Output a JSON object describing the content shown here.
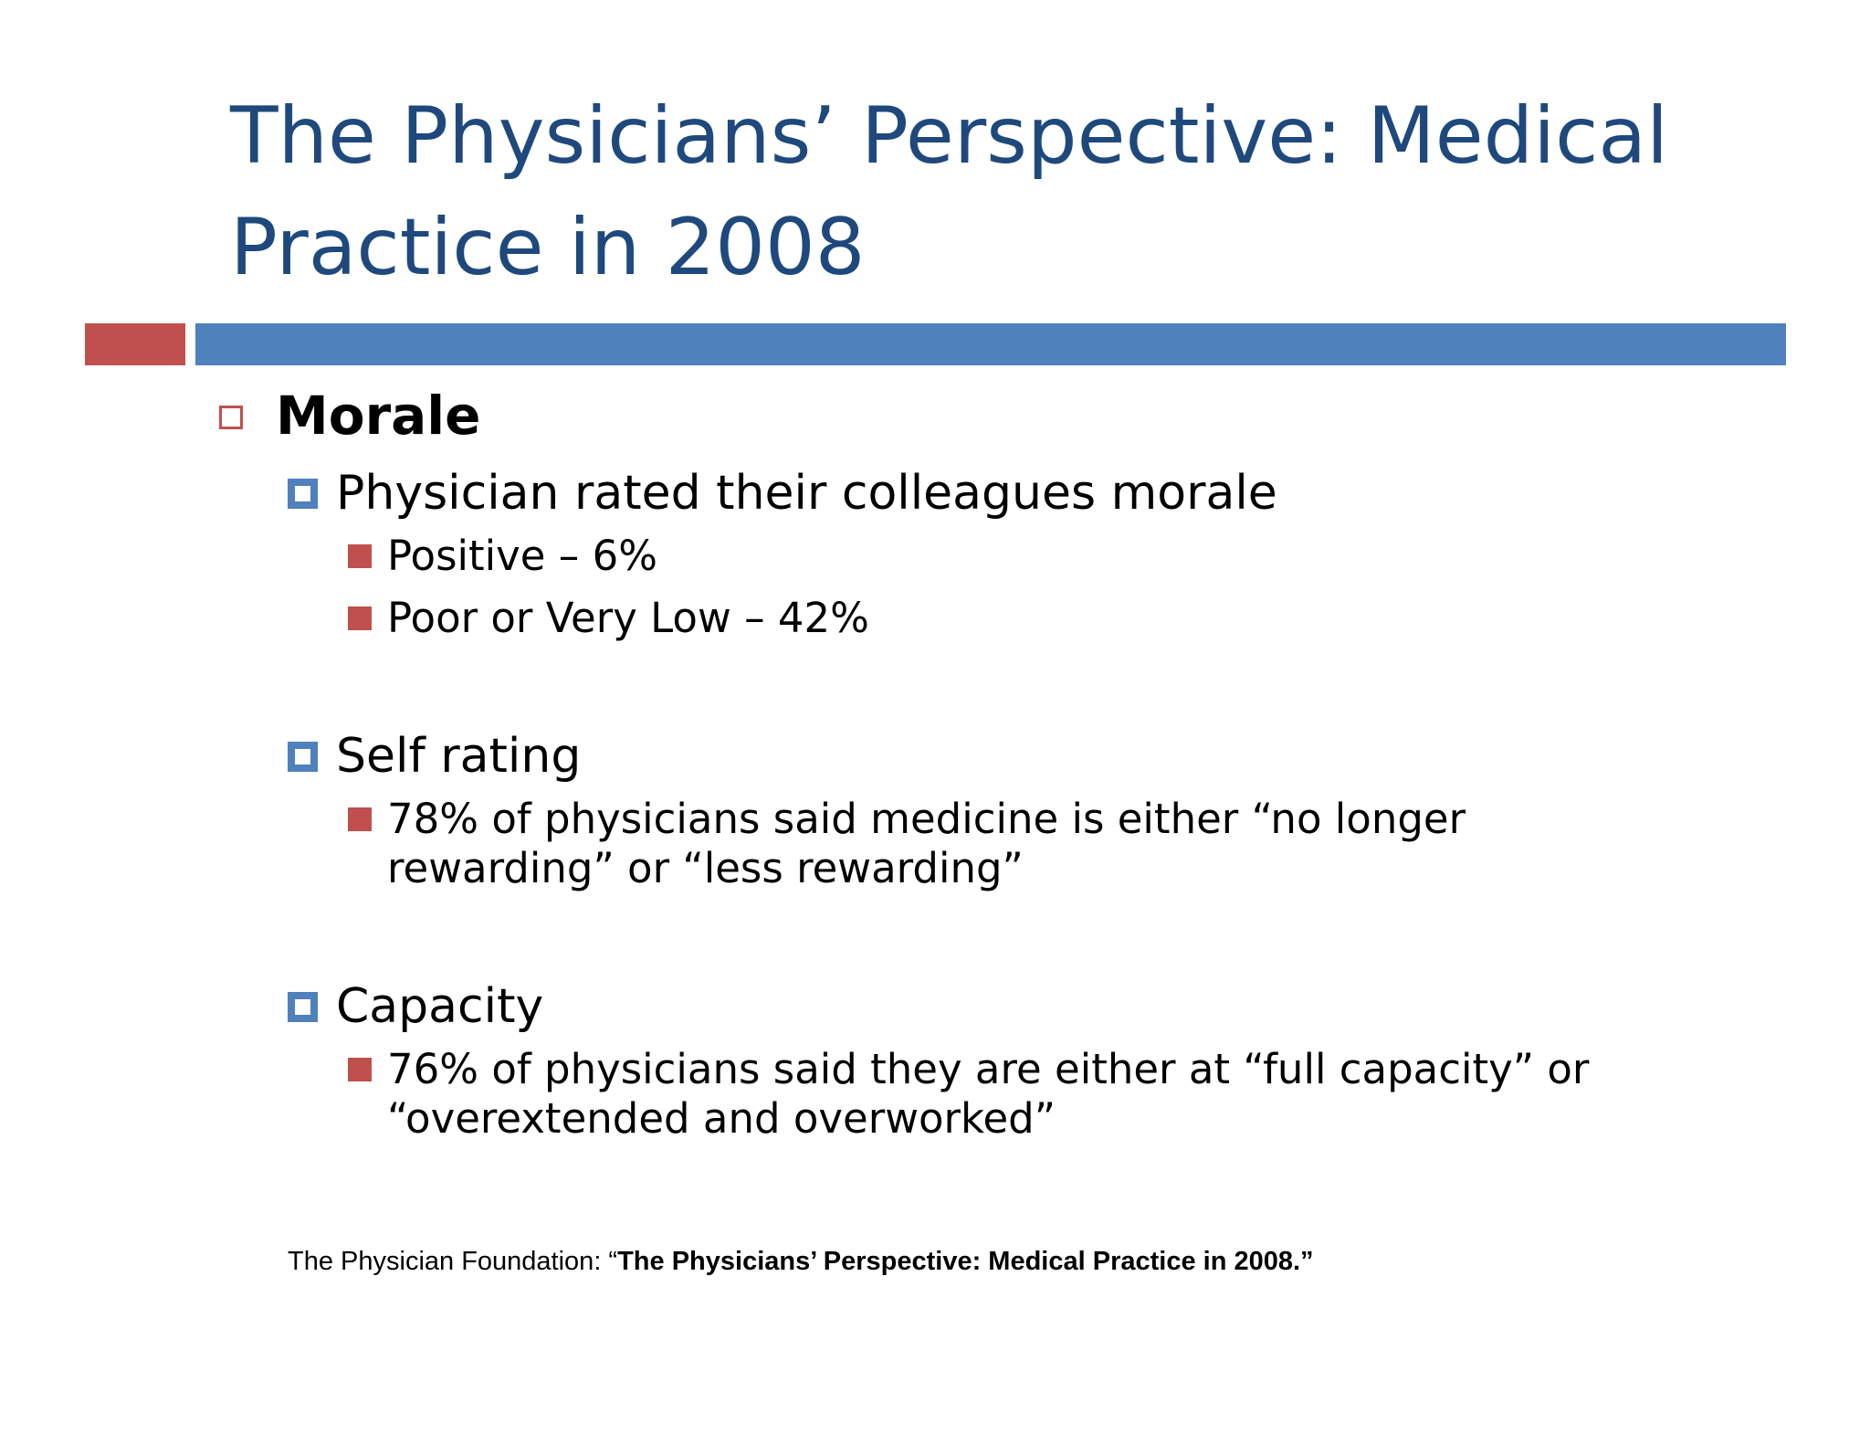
{
  "title": {
    "line1": "The Physicians’ Perspective: Medical",
    "line2": "Practice in 2008"
  },
  "colors": {
    "title": "#1f497d",
    "accent_red": "#c0504d",
    "accent_blue": "#4f81bd"
  },
  "morale": {
    "heading": "Morale",
    "colleagues": {
      "label": "Physician rated their colleagues morale",
      "items": [
        "Positive – 6%",
        "Poor or Very Low – 42%"
      ]
    },
    "self_rating": {
      "label": "Self rating",
      "item_line1": "78% of physicians said medicine is either “no longer",
      "item_line2": "rewarding” or “less rewarding”"
    },
    "capacity": {
      "label": "Capacity",
      "item_line1": "76% of physicians said they are either at “full capacity” or",
      "item_line2": "“overextended and overworked”"
    }
  },
  "citation": {
    "source": "The Physician Foundation: “",
    "title": "The Physicians’ Perspective: Medical Practice in 2008.”"
  }
}
